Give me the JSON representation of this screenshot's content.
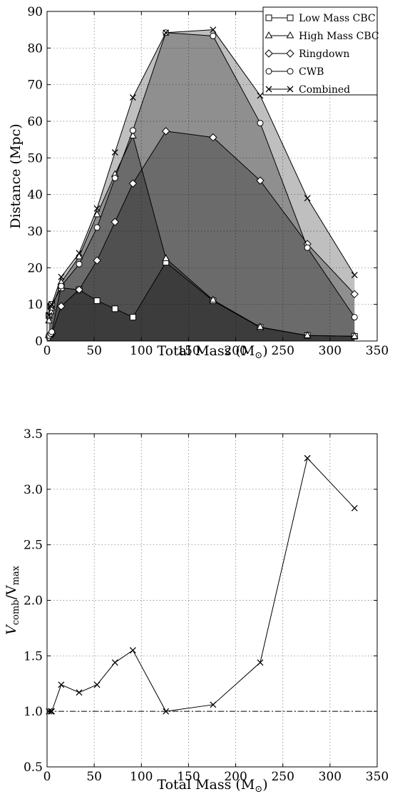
{
  "chart_data": [
    {
      "type": "line",
      "xlabel": "Total Mass",
      "xlabel_unit": "(M",
      "xlabel_unit_sub": "⊙",
      "xlabel_unit_close": ")",
      "ylabel": "Distance (Mpc)",
      "xlim": [
        0,
        350
      ],
      "ylim": [
        0,
        90
      ],
      "xticks": [
        "0",
        "50",
        "100",
        "150",
        "200",
        "250",
        "300",
        "350"
      ],
      "yticks": [
        "0",
        "10",
        "20",
        "30",
        "40",
        "50",
        "60",
        "70",
        "80",
        "90"
      ],
      "grid": true,
      "legend_position": "top-right",
      "series": [
        {
          "name": "Low Mass CBC",
          "marker": "square",
          "x": [
            2,
            4,
            5,
            15,
            34,
            53,
            72,
            91,
            126,
            176,
            226,
            276,
            326
          ],
          "y": [
            7,
            9.5,
            10,
            14.5,
            14,
            11,
            8.8,
            6.5,
            21.5,
            11,
            3.7,
            1.5,
            1.3
          ]
        },
        {
          "name": "High Mass CBC",
          "marker": "triangle",
          "x": [
            2,
            4,
            5,
            15,
            34,
            53,
            72,
            91,
            126,
            176,
            226,
            276,
            326
          ],
          "y": [
            5.5,
            8,
            9,
            16,
            23,
            34.5,
            45.5,
            56,
            22.5,
            11.2,
            3.8,
            1.5,
            1.3
          ]
        },
        {
          "name": "Ringdown",
          "marker": "diamond",
          "x": [
            2,
            4,
            5,
            15,
            34,
            53,
            72,
            91,
            126,
            176,
            226,
            276,
            326
          ],
          "y": [
            1,
            1.5,
            2,
            9.5,
            14,
            22,
            32.5,
            43,
            57.3,
            55.6,
            43.8,
            26.5,
            12.8
          ]
        },
        {
          "name": "CWB",
          "marker": "circle",
          "x": [
            2,
            4,
            5,
            15,
            34,
            53,
            72,
            91,
            126,
            176,
            226,
            276,
            326
          ],
          "y": [
            1.5,
            2,
            2.5,
            15,
            21,
            31,
            44.5,
            57.5,
            84.2,
            83.3,
            59.5,
            25.5,
            6.5
          ]
        },
        {
          "name": "Combined",
          "marker": "x",
          "x": [
            2,
            4,
            5,
            15,
            34,
            53,
            72,
            91,
            126,
            176,
            226,
            276,
            326
          ],
          "y": [
            7,
            9.5,
            10,
            17.5,
            24,
            36.2,
            51.5,
            66.5,
            84.2,
            85,
            67,
            39,
            18
          ]
        }
      ],
      "shading": "each series filled to the x-axis in translucent gray"
    },
    {
      "type": "line",
      "xlabel": "Total Mass",
      "xlabel_unit": "(M",
      "xlabel_unit_sub": "⊙",
      "xlabel_unit_close": ")",
      "ylabel_main": "V",
      "ylabel_sub1": "comb",
      "ylabel_sep": "/V",
      "ylabel_sub2": "max",
      "xlim": [
        0,
        350
      ],
      "ylim": [
        0.5,
        3.5
      ],
      "xticks": [
        "0",
        "50",
        "100",
        "150",
        "200",
        "250",
        "300",
        "350"
      ],
      "yticks": [
        "0.5",
        "1.0",
        "1.5",
        "2.0",
        "2.5",
        "3.0",
        "3.5"
      ],
      "grid": true,
      "reference_line": {
        "y": 1.0,
        "style": "dash-dot"
      },
      "series": [
        {
          "marker": "x",
          "x": [
            2,
            4,
            5,
            15,
            34,
            53,
            72,
            91,
            126,
            176,
            226,
            276,
            326
          ],
          "y": [
            1.0,
            1.0,
            1.0,
            1.24,
            1.17,
            1.24,
            1.44,
            1.55,
            1.0,
            1.06,
            1.44,
            3.28,
            2.83
          ]
        }
      ]
    }
  ]
}
